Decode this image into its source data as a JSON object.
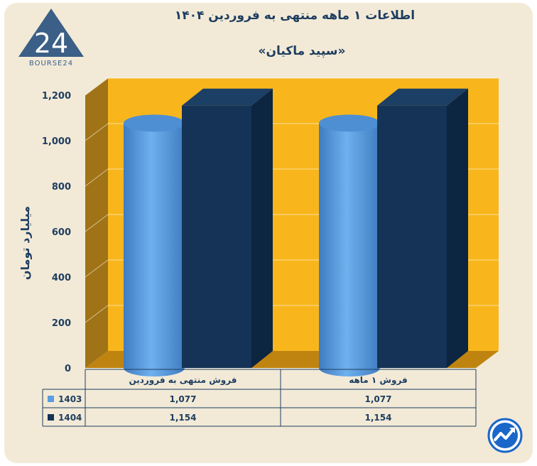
{
  "header": {
    "title": "اطلاعات ۱ ماهه منتهی به فروردین ۱۴۰۴",
    "subtitle": "«سپید ماکیان»",
    "logo_text": "BOURSE24",
    "logo_mark": "24"
  },
  "colors": {
    "panel_bg": "#f2ead7",
    "plot_back": "#f8b61c",
    "plot_side": "#a07316",
    "plot_floor": "#bf8410",
    "series_1403": "#5b9de0",
    "series_1404": "#143356",
    "text": "#1f3e60"
  },
  "chart_data": {
    "type": "bar",
    "title": "اطلاعات ۱ ماهه منتهی به فروردین ۱۴۰۴",
    "subtitle": "«سپید ماکیان»",
    "ylabel": "میلیارد تومان",
    "ylim": [
      0,
      1200
    ],
    "yticks": [
      0,
      200,
      400,
      600,
      800,
      1000,
      1200
    ],
    "ytick_labels": [
      "0",
      "200",
      "400",
      "600",
      "800",
      "1,000",
      "1,200"
    ],
    "categories": [
      "فروش منتهی به فروردین",
      "فروش ۱ ماهه"
    ],
    "series": [
      {
        "name": "1403",
        "values": [
          1077,
          1077
        ],
        "value_labels": [
          "1,077",
          "1,077"
        ],
        "shape": "cylinder",
        "color": "#5b9de0"
      },
      {
        "name": "1404",
        "values": [
          1154,
          1154
        ],
        "value_labels": [
          "1,154",
          "1,154"
        ],
        "shape": "box",
        "color": "#143356"
      }
    ],
    "grid": true,
    "legend": "data-table-below"
  }
}
